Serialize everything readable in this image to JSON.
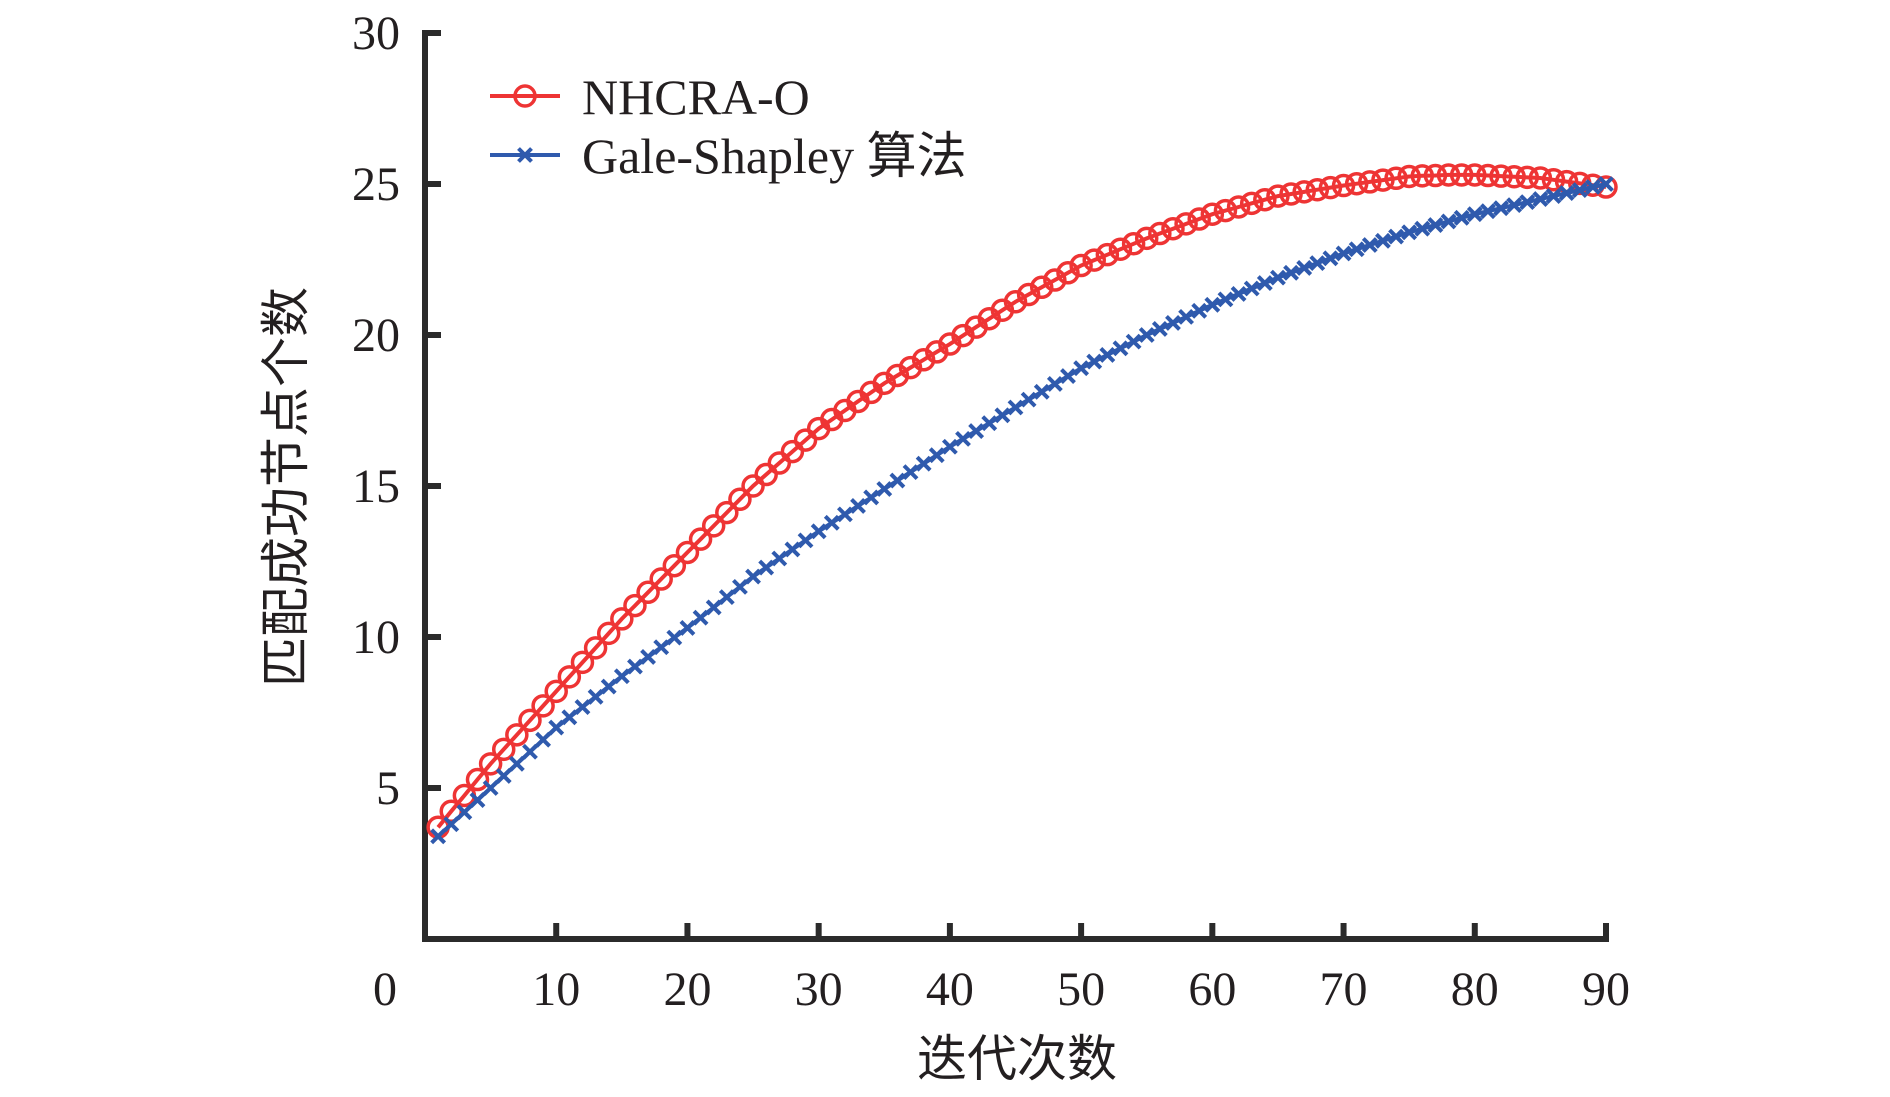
{
  "chart_data": {
    "type": "line",
    "title": "",
    "xlabel": "迭代次数",
    "ylabel": "匹配成功节点个数",
    "xlim": [
      0,
      90
    ],
    "ylim": [
      0,
      30
    ],
    "xticks": [
      0,
      10,
      20,
      30,
      40,
      50,
      60,
      70,
      80,
      90
    ],
    "xtick_labels": [
      "0",
      "10",
      "20",
      "30",
      "40",
      "50",
      "60",
      "70",
      "80",
      "90"
    ],
    "yticks": [
      5,
      10,
      15,
      20,
      25,
      30
    ],
    "ytick_labels": [
      "5",
      "10",
      "15",
      "20",
      "25",
      "30"
    ],
    "grid": false,
    "legend_position": "top-left",
    "x": [
      1,
      2,
      3,
      4,
      5,
      6,
      7,
      8,
      9,
      10,
      11,
      12,
      13,
      14,
      15,
      16,
      17,
      18,
      19,
      20,
      21,
      22,
      23,
      24,
      25,
      26,
      27,
      28,
      29,
      30,
      31,
      32,
      33,
      34,
      35,
      36,
      37,
      38,
      39,
      40,
      41,
      42,
      43,
      44,
      45,
      46,
      47,
      48,
      49,
      50,
      51,
      52,
      53,
      54,
      55,
      56,
      57,
      58,
      59,
      60,
      61,
      62,
      63,
      64,
      65,
      66,
      67,
      68,
      69,
      70,
      71,
      72,
      73,
      74,
      75,
      76,
      77,
      78,
      79,
      80,
      81,
      82,
      83,
      84,
      85,
      86,
      87,
      88,
      89,
      90
    ],
    "series": [
      {
        "name": "NHCRA-O",
        "color": "#ee3434",
        "marker": "circle",
        "values": [
          3.7,
          4.23,
          4.75,
          5.28,
          5.8,
          6.28,
          6.76,
          7.24,
          7.72,
          8.2,
          8.68,
          9.16,
          9.64,
          10.12,
          10.6,
          11.04,
          11.48,
          11.92,
          12.36,
          12.8,
          13.24,
          13.68,
          14.12,
          14.56,
          15.0,
          15.38,
          15.76,
          16.14,
          16.52,
          16.9,
          17.2,
          17.5,
          17.8,
          18.1,
          18.4,
          18.66,
          18.92,
          19.18,
          19.44,
          19.7,
          19.98,
          20.26,
          20.54,
          20.82,
          21.1,
          21.34,
          21.58,
          21.82,
          22.06,
          22.3,
          22.48,
          22.66,
          22.84,
          23.02,
          23.2,
          23.36,
          23.52,
          23.68,
          23.84,
          24.0,
          24.12,
          24.24,
          24.36,
          24.48,
          24.6,
          24.67,
          24.74,
          24.81,
          24.88,
          24.95,
          25.01,
          25.07,
          25.13,
          25.19,
          25.25,
          25.27,
          25.28,
          25.3,
          25.3,
          25.3,
          25.28,
          25.26,
          25.24,
          25.22,
          25.2,
          25.14,
          25.08,
          25.02,
          24.96,
          24.9
        ]
      },
      {
        "name": "Gale-Shapley 算法",
        "color": "#2f5aad",
        "marker": "x",
        "values": [
          3.4,
          3.8,
          4.2,
          4.6,
          5.0,
          5.4,
          5.8,
          6.2,
          6.6,
          7.0,
          7.34,
          7.68,
          8.02,
          8.36,
          8.7,
          9.02,
          9.34,
          9.66,
          9.98,
          10.3,
          10.64,
          10.98,
          11.32,
          11.66,
          12.0,
          12.3,
          12.6,
          12.9,
          13.2,
          13.5,
          13.78,
          14.06,
          14.34,
          14.62,
          14.9,
          15.18,
          15.46,
          15.74,
          16.02,
          16.3,
          16.56,
          16.82,
          17.08,
          17.34,
          17.6,
          17.86,
          18.12,
          18.38,
          18.64,
          18.9,
          19.12,
          19.34,
          19.56,
          19.78,
          20.0,
          20.2,
          20.4,
          20.6,
          20.8,
          21.0,
          21.18,
          21.36,
          21.54,
          21.72,
          21.9,
          22.06,
          22.22,
          22.38,
          22.54,
          22.7,
          22.84,
          22.98,
          23.12,
          23.26,
          23.4,
          23.52,
          23.64,
          23.76,
          23.88,
          24.0,
          24.1,
          24.2,
          24.3,
          24.4,
          24.5,
          24.6,
          24.7,
          24.8,
          24.9,
          25.0
        ]
      }
    ]
  }
}
